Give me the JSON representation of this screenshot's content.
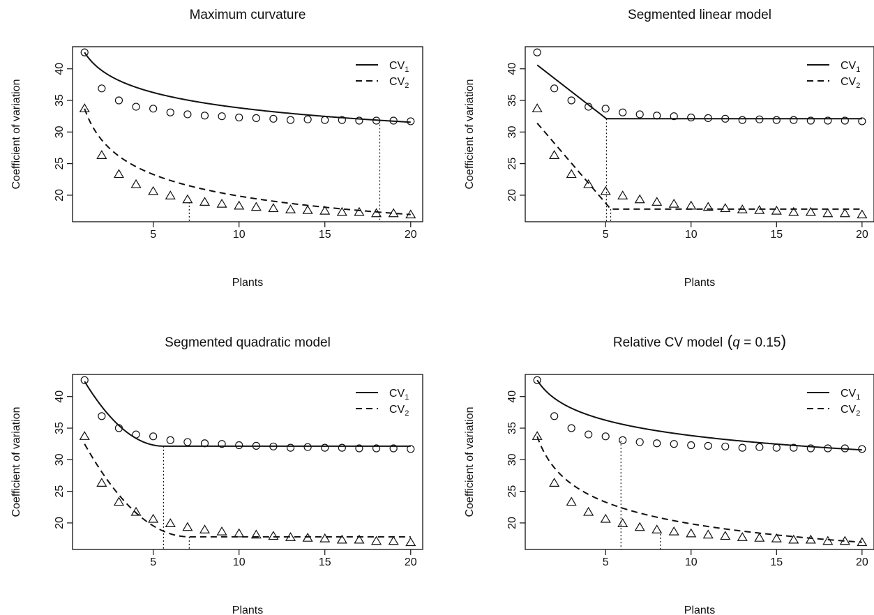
{
  "chart_data": [
    {
      "type": "line",
      "title": "Maximum curvature",
      "xlabel": "Plants",
      "ylabel": "Coefficient of variation",
      "xlim": [
        0.3,
        20.7
      ],
      "ylim": [
        15.8,
        43.5
      ],
      "xticks": [
        5,
        10,
        15,
        20
      ],
      "yticks": [
        20,
        25,
        30,
        35,
        40
      ],
      "legend_position": "top-right",
      "legend": [
        {
          "label": "CV",
          "sub": "1",
          "style": "solid"
        },
        {
          "label": "CV",
          "sub": "2",
          "style": "dashed"
        }
      ],
      "points_cv1": [
        [
          1,
          42.6
        ],
        [
          2,
          36.9
        ],
        [
          3,
          35.0
        ],
        [
          4,
          34.0
        ],
        [
          5,
          33.7
        ],
        [
          6,
          33.1
        ],
        [
          7,
          32.8
        ],
        [
          8,
          32.6
        ],
        [
          9,
          32.5
        ],
        [
          10,
          32.3
        ],
        [
          11,
          32.2
        ],
        [
          12,
          32.1
        ],
        [
          13,
          31.9
        ],
        [
          14,
          32.0
        ],
        [
          15,
          31.9
        ],
        [
          16,
          31.9
        ],
        [
          17,
          31.8
        ],
        [
          18,
          31.8
        ],
        [
          19,
          31.8
        ],
        [
          20,
          31.7
        ]
      ],
      "points_cv2": [
        [
          1,
          33.7
        ],
        [
          2,
          26.3
        ],
        [
          3,
          23.3
        ],
        [
          4,
          21.7
        ],
        [
          5,
          20.6
        ],
        [
          6,
          19.9
        ],
        [
          7,
          19.3
        ],
        [
          8,
          18.9
        ],
        [
          9,
          18.6
        ],
        [
          10,
          18.3
        ],
        [
          11,
          18.1
        ],
        [
          12,
          17.9
        ],
        [
          13,
          17.7
        ],
        [
          14,
          17.6
        ],
        [
          15,
          17.5
        ],
        [
          16,
          17.3
        ],
        [
          17,
          17.3
        ],
        [
          18,
          17.1
        ],
        [
          19,
          17.1
        ],
        [
          20,
          16.9
        ]
      ],
      "series": [
        {
          "name": "CV1",
          "style": "solid",
          "model": "power",
          "a": 42.6,
          "b": 0.1002
        },
        {
          "name": "CV2",
          "style": "dashed",
          "model": "power",
          "a": 33.7,
          "b": 0.2296
        }
      ],
      "cutoffs": [
        {
          "x": 18.2,
          "y": 31.75
        },
        {
          "x": 7.1,
          "y": 18.9
        }
      ]
    },
    {
      "type": "line",
      "title": "Segmented linear model",
      "xlabel": "Plants",
      "ylabel": "Coefficient of variation",
      "xlim": [
        0.3,
        20.7
      ],
      "ylim": [
        15.8,
        43.5
      ],
      "xticks": [
        5,
        10,
        15,
        20
      ],
      "yticks": [
        20,
        25,
        30,
        35,
        40
      ],
      "legend_position": "top-right",
      "legend": [
        {
          "label": "CV",
          "sub": "1",
          "style": "solid"
        },
        {
          "label": "CV",
          "sub": "2",
          "style": "dashed"
        }
      ],
      "points_cv1": [
        [
          1,
          42.6
        ],
        [
          2,
          36.9
        ],
        [
          3,
          35.0
        ],
        [
          4,
          34.0
        ],
        [
          5,
          33.7
        ],
        [
          6,
          33.1
        ],
        [
          7,
          32.8
        ],
        [
          8,
          32.6
        ],
        [
          9,
          32.5
        ],
        [
          10,
          32.3
        ],
        [
          11,
          32.2
        ],
        [
          12,
          32.1
        ],
        [
          13,
          31.9
        ],
        [
          14,
          32.0
        ],
        [
          15,
          31.9
        ],
        [
          16,
          31.9
        ],
        [
          17,
          31.8
        ],
        [
          18,
          31.8
        ],
        [
          19,
          31.8
        ],
        [
          20,
          31.7
        ]
      ],
      "points_cv2": [
        [
          1,
          33.7
        ],
        [
          2,
          26.3
        ],
        [
          3,
          23.3
        ],
        [
          4,
          21.7
        ],
        [
          5,
          20.6
        ],
        [
          6,
          19.9
        ],
        [
          7,
          19.3
        ],
        [
          8,
          18.9
        ],
        [
          9,
          18.6
        ],
        [
          10,
          18.3
        ],
        [
          11,
          18.1
        ],
        [
          12,
          17.9
        ],
        [
          13,
          17.7
        ],
        [
          14,
          17.6
        ],
        [
          15,
          17.5
        ],
        [
          16,
          17.3
        ],
        [
          17,
          17.3
        ],
        [
          18,
          17.1
        ],
        [
          19,
          17.1
        ],
        [
          20,
          16.9
        ]
      ],
      "series": [
        {
          "name": "CV1",
          "style": "solid",
          "model": "segmented-linear",
          "breakpoint": 5.05,
          "plateau": 32.1,
          "start": [
            1,
            40.6
          ]
        },
        {
          "name": "CV2",
          "style": "dashed",
          "model": "segmented-linear",
          "breakpoint": 5.3,
          "plateau": 17.8,
          "start": [
            1,
            31.4
          ]
        }
      ],
      "cutoffs": [
        {
          "x": 5.05,
          "y": 32.1
        },
        {
          "x": 5.3,
          "y": 17.8
        }
      ]
    },
    {
      "type": "line",
      "title": "Segmented quadratic model",
      "xlabel": "Plants",
      "ylabel": "Coefficient of variation",
      "xlim": [
        0.3,
        20.7
      ],
      "ylim": [
        15.8,
        43.5
      ],
      "xticks": [
        5,
        10,
        15,
        20
      ],
      "yticks": [
        20,
        25,
        30,
        35,
        40
      ],
      "legend_position": "top-right",
      "legend": [
        {
          "label": "CV",
          "sub": "1",
          "style": "solid"
        },
        {
          "label": "CV",
          "sub": "2",
          "style": "dashed"
        }
      ],
      "points_cv1": [
        [
          1,
          42.6
        ],
        [
          2,
          36.9
        ],
        [
          3,
          35.0
        ],
        [
          4,
          34.0
        ],
        [
          5,
          33.7
        ],
        [
          6,
          33.1
        ],
        [
          7,
          32.8
        ],
        [
          8,
          32.6
        ],
        [
          9,
          32.5
        ],
        [
          10,
          32.3
        ],
        [
          11,
          32.2
        ],
        [
          12,
          32.1
        ],
        [
          13,
          31.9
        ],
        [
          14,
          32.0
        ],
        [
          15,
          31.9
        ],
        [
          16,
          31.9
        ],
        [
          17,
          31.8
        ],
        [
          18,
          31.8
        ],
        [
          19,
          31.8
        ],
        [
          20,
          31.7
        ]
      ],
      "points_cv2": [
        [
          1,
          33.7
        ],
        [
          2,
          26.3
        ],
        [
          3,
          23.3
        ],
        [
          4,
          21.7
        ],
        [
          5,
          20.6
        ],
        [
          6,
          19.9
        ],
        [
          7,
          19.3
        ],
        [
          8,
          18.9
        ],
        [
          9,
          18.6
        ],
        [
          10,
          18.3
        ],
        [
          11,
          18.1
        ],
        [
          12,
          17.9
        ],
        [
          13,
          17.7
        ],
        [
          14,
          17.6
        ],
        [
          15,
          17.5
        ],
        [
          16,
          17.3
        ],
        [
          17,
          17.3
        ],
        [
          18,
          17.1
        ],
        [
          19,
          17.1
        ],
        [
          20,
          16.9
        ]
      ],
      "series": [
        {
          "name": "CV1",
          "style": "solid",
          "model": "segmented-quadratic",
          "breakpoint": 5.6,
          "plateau": 32.15,
          "start": [
            1,
            42.4
          ]
        },
        {
          "name": "CV2",
          "style": "dashed",
          "model": "segmented-quadratic",
          "breakpoint": 7.1,
          "plateau": 17.8,
          "start": [
            1,
            32.5
          ]
        }
      ],
      "cutoffs": [
        {
          "x": 5.6,
          "y": 32.15
        },
        {
          "x": 7.1,
          "y": 17.8
        }
      ]
    },
    {
      "type": "line",
      "title": "Relative CV model",
      "title_math": {
        "var": "q",
        "value": "0.15"
      },
      "xlabel": "Plants",
      "ylabel": "Coefficient of variation",
      "xlim": [
        0.3,
        20.7
      ],
      "ylim": [
        15.8,
        43.5
      ],
      "xticks": [
        5,
        10,
        15,
        20
      ],
      "yticks": [
        20,
        25,
        30,
        35,
        40
      ],
      "legend_position": "top-right",
      "legend": [
        {
          "label": "CV",
          "sub": "1",
          "style": "solid"
        },
        {
          "label": "CV",
          "sub": "2",
          "style": "dashed"
        }
      ],
      "points_cv1": [
        [
          1,
          42.6
        ],
        [
          2,
          36.9
        ],
        [
          3,
          35.0
        ],
        [
          4,
          34.0
        ],
        [
          5,
          33.7
        ],
        [
          6,
          33.1
        ],
        [
          7,
          32.8
        ],
        [
          8,
          32.6
        ],
        [
          9,
          32.5
        ],
        [
          10,
          32.3
        ],
        [
          11,
          32.2
        ],
        [
          12,
          32.1
        ],
        [
          13,
          31.9
        ],
        [
          14,
          32.0
        ],
        [
          15,
          31.9
        ],
        [
          16,
          31.9
        ],
        [
          17,
          31.8
        ],
        [
          18,
          31.8
        ],
        [
          19,
          31.8
        ],
        [
          20,
          31.7
        ]
      ],
      "points_cv2": [
        [
          1,
          33.7
        ],
        [
          2,
          26.3
        ],
        [
          3,
          23.3
        ],
        [
          4,
          21.7
        ],
        [
          5,
          20.6
        ],
        [
          6,
          19.9
        ],
        [
          7,
          19.3
        ],
        [
          8,
          18.9
        ],
        [
          9,
          18.6
        ],
        [
          10,
          18.3
        ],
        [
          11,
          18.1
        ],
        [
          12,
          17.9
        ],
        [
          13,
          17.7
        ],
        [
          14,
          17.6
        ],
        [
          15,
          17.5
        ],
        [
          16,
          17.3
        ],
        [
          17,
          17.3
        ],
        [
          18,
          17.1
        ],
        [
          19,
          17.1
        ],
        [
          20,
          16.9
        ]
      ],
      "series": [
        {
          "name": "CV1",
          "style": "solid",
          "model": "power",
          "a": 42.6,
          "b": 0.1002
        },
        {
          "name": "CV2",
          "style": "dashed",
          "model": "power",
          "a": 33.7,
          "b": 0.2296
        }
      ],
      "cutoffs": [
        {
          "x": 5.9,
          "y": 33.0
        },
        {
          "x": 8.2,
          "y": 18.8
        }
      ]
    }
  ]
}
